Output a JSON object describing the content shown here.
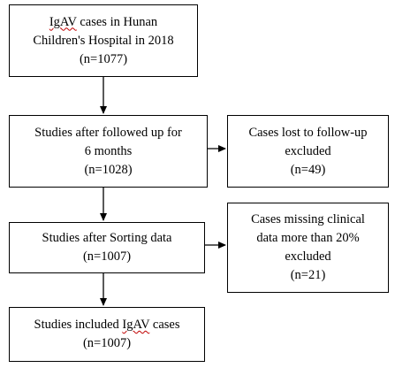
{
  "nodes": {
    "source": {
      "prefix": "IgAV",
      "line1_rest": " cases in Hunan",
      "line2": "Children's Hospital in 2018",
      "count": "(n=1077)"
    },
    "followed_up": {
      "line1": "Studies after followed up for",
      "line2": "6 months",
      "count": "(n=1028)"
    },
    "lost": {
      "line1": "Cases lost to follow-up",
      "line2": "excluded",
      "count": "(n=49)"
    },
    "sorted": {
      "line1": "Studies after Sorting data",
      "count": "(n=1007)"
    },
    "missing": {
      "line1": "Cases missing clinical",
      "line2": "data more than 20%",
      "line3": "excluded",
      "count": "(n=21)"
    },
    "included": {
      "line1_pre": "Studies included ",
      "line1_term": "IgAV",
      "line1_post": " cases",
      "count": "(n=1007)"
    }
  },
  "colors": {
    "stroke": "#000000",
    "spellcheck_underline": "#c00000"
  }
}
